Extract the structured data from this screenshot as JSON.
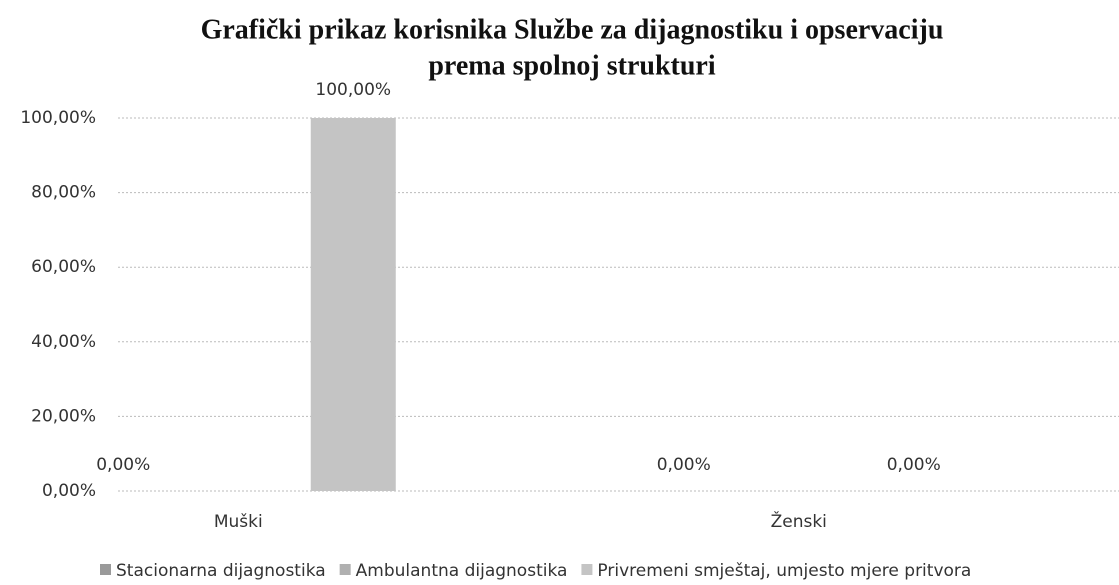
{
  "chart_data": {
    "type": "bar",
    "title": [
      "Grafički prikaz korisnika Službe za dijagnostiku i opservaciju",
      "prema spolnoj strukturi"
    ],
    "categories": [
      "Muški",
      "Ženski"
    ],
    "series": [
      {
        "name": "Stacionarna dijagnostika",
        "color": "#9a9a9a",
        "values": [
          0,
          0
        ],
        "value_labels": [
          "0,00%",
          "0,00%"
        ]
      },
      {
        "name": "Ambulantna dijagnostika",
        "color": "#b0b0b0",
        "values": [
          null,
          null
        ],
        "value_labels": [
          null,
          null
        ]
      },
      {
        "name": "Privremeni smještaj, umjesto mjere pritvora",
        "color": "#c4c4c4",
        "values": [
          100,
          0
        ],
        "value_labels": [
          "100,00%",
          "0,00%"
        ]
      }
    ],
    "ylim": [
      0,
      100
    ],
    "yticks": [
      {
        "value": 0,
        "label": "0,00%"
      },
      {
        "value": 20,
        "label": "20,00%"
      },
      {
        "value": 40,
        "label": "40,00%"
      },
      {
        "value": 60,
        "label": "60,00%"
      },
      {
        "value": 80,
        "label": "80,00%"
      },
      {
        "value": 100,
        "label": "100,00%"
      }
    ],
    "grid": true,
    "legend": "bottom"
  }
}
